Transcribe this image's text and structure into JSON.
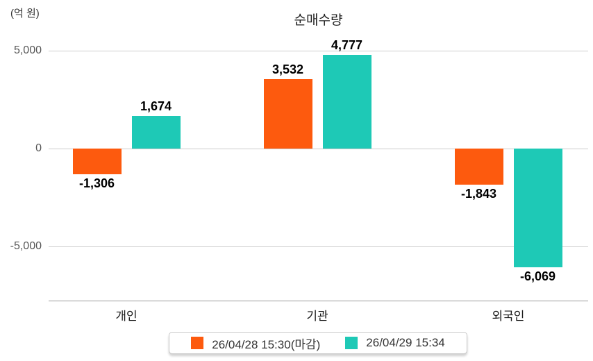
{
  "chart_data": {
    "type": "bar",
    "title": "순매수량",
    "ylabel": "(억 원)",
    "xlabel": "",
    "categories": [
      "개인",
      "기관",
      "외국인"
    ],
    "series": [
      {
        "name": "26/04/28 15:30(마감)",
        "color": "#fd5a0e",
        "values": [
          -1306,
          3532,
          -1843
        ],
        "value_labels": [
          "-1,306",
          "3,532",
          "-1,843"
        ]
      },
      {
        "name": "26/04/29 15:34",
        "color": "#1ec9b6",
        "values": [
          1674,
          4777,
          -6069
        ],
        "value_labels": [
          "1,674",
          "4,777",
          "-6,069"
        ]
      }
    ],
    "yticks": [
      {
        "value": 5000,
        "label": "5,000"
      },
      {
        "value": 0,
        "label": "0"
      },
      {
        "value": -5000,
        "label": "-5,000"
      }
    ],
    "ylim": [
      -7750,
      5000
    ],
    "grid": true,
    "legend_position": "bottom",
    "colors": {
      "gridline": "#cccccc",
      "axis_line": "#999999",
      "tick_text": "#555555",
      "value_text": "#000000",
      "legend_border": "#c8c8c8"
    }
  }
}
